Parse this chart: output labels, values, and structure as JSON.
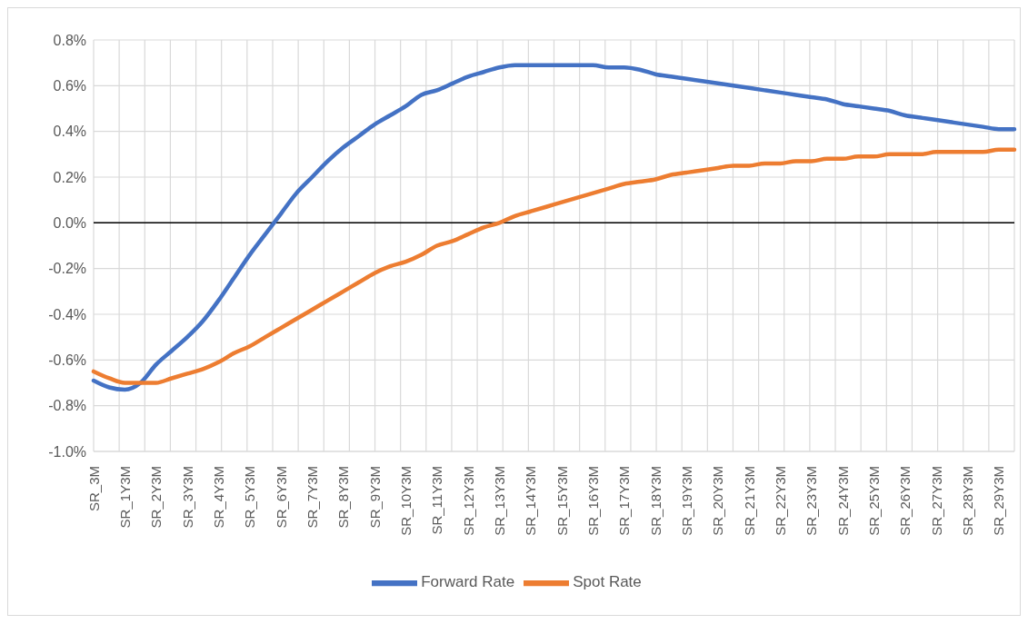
{
  "chart_data": {
    "type": "line",
    "categories": [
      "SR_3M",
      null,
      "SR_1Y3M",
      null,
      "SR_2Y3M",
      null,
      "SR_3Y3M",
      null,
      "SR_4Y3M",
      null,
      "SR_5Y3M",
      null,
      "SR_6Y3M",
      null,
      "SR_7Y3M",
      null,
      "SR_8Y3M",
      null,
      "SR_9Y3M",
      null,
      "SR_10Y3M",
      null,
      "SR_11Y3M",
      null,
      "SR_12Y3M",
      null,
      "SR_13Y3M",
      null,
      "SR_14Y3M",
      null,
      "SR_15Y3M",
      null,
      "SR_16Y3M",
      null,
      "SR_17Y3M",
      null,
      "SR_18Y3M",
      null,
      "SR_19Y3M",
      null,
      "SR_20Y3M",
      null,
      "SR_21Y3M",
      null,
      "SR_22Y3M",
      null,
      "SR_23Y3M",
      null,
      "SR_24Y3M",
      null,
      "SR_25Y3M",
      null,
      "SR_26Y3M",
      null,
      "SR_27Y3M",
      null,
      "SR_28Y3M",
      null,
      "SR_29Y3M",
      null
    ],
    "series": [
      {
        "name": "Forward Rate",
        "color": "#4472c4",
        "values": [
          -0.69,
          -0.72,
          -0.73,
          -0.7,
          -0.62,
          -0.56,
          -0.5,
          -0.43,
          -0.34,
          -0.24,
          -0.14,
          -0.05,
          0.04,
          0.13,
          0.2,
          0.27,
          0.33,
          0.38,
          0.43,
          0.47,
          0.51,
          0.56,
          0.58,
          0.61,
          0.64,
          0.66,
          0.68,
          0.69,
          0.69,
          0.69,
          0.69,
          0.69,
          0.69,
          0.68,
          0.68,
          0.67,
          0.65,
          0.64,
          0.63,
          0.62,
          0.61,
          0.6,
          0.59,
          0.58,
          0.57,
          0.56,
          0.55,
          0.54,
          0.52,
          0.51,
          0.5,
          0.49,
          0.47,
          0.46,
          0.45,
          0.44,
          0.43,
          0.42,
          0.41,
          0.41
        ]
      },
      {
        "name": "Spot Rate",
        "color": "#ed7d31",
        "values": [
          -0.65,
          -0.68,
          -0.7,
          -0.7,
          -0.7,
          -0.68,
          -0.66,
          -0.64,
          -0.61,
          -0.57,
          -0.54,
          -0.5,
          -0.46,
          -0.42,
          -0.38,
          -0.34,
          -0.3,
          -0.26,
          -0.22,
          -0.19,
          -0.17,
          -0.14,
          -0.1,
          -0.08,
          -0.05,
          -0.02,
          0.0,
          0.03,
          0.05,
          0.07,
          0.09,
          0.11,
          0.13,
          0.15,
          0.17,
          0.18,
          0.19,
          0.21,
          0.22,
          0.23,
          0.24,
          0.25,
          0.25,
          0.26,
          0.26,
          0.27,
          0.27,
          0.28,
          0.28,
          0.29,
          0.29,
          0.3,
          0.3,
          0.3,
          0.31,
          0.31,
          0.31,
          0.31,
          0.32,
          0.32
        ]
      }
    ],
    "ylim": [
      -1.0,
      0.8
    ],
    "yticks": [
      {
        "value": -1.0,
        "label": "-1.0%"
      },
      {
        "value": -0.8,
        "label": "-0.8%"
      },
      {
        "value": -0.6,
        "label": "-0.6%"
      },
      {
        "value": -0.4,
        "label": "-0.4%"
      },
      {
        "value": -0.2,
        "label": "-0.2%"
      },
      {
        "value": 0.0,
        "label": "0.0%"
      },
      {
        "value": 0.2,
        "label": "0.2%"
      },
      {
        "value": 0.4,
        "label": "0.4%"
      },
      {
        "value": 0.6,
        "label": "0.6%"
      },
      {
        "value": 0.8,
        "label": "0.8%"
      }
    ],
    "ref_lines": [
      {
        "axis": "y",
        "value": 0,
        "color": "#000000"
      }
    ],
    "grid": true,
    "legend": "bottom",
    "marker": "none",
    "line_style": "solid"
  }
}
